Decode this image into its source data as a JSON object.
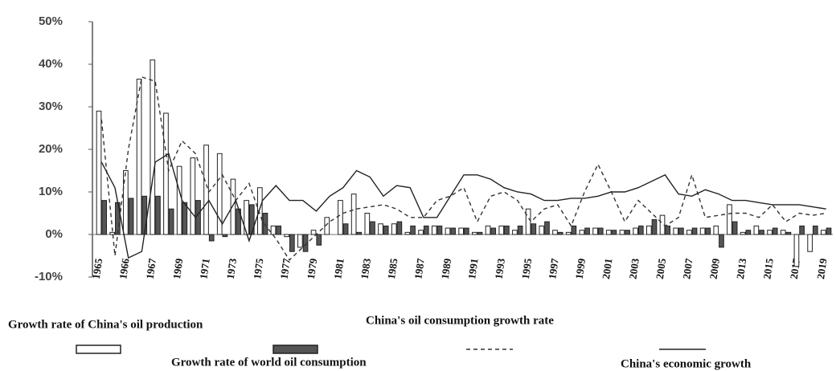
{
  "chart_data": {
    "type": "bar-line",
    "categories": [
      "1965",
      null,
      "1966",
      null,
      "1967",
      null,
      "1969",
      null,
      "1971",
      null,
      "1973",
      null,
      "1975",
      null,
      "1977",
      null,
      "1979",
      null,
      "1981",
      null,
      "1983",
      null,
      "1985",
      null,
      "1987",
      null,
      "1989",
      null,
      "1991",
      null,
      "1993",
      null,
      "1995",
      null,
      "1997",
      null,
      "1999",
      null,
      "2001",
      null,
      "2003",
      null,
      "2005",
      null,
      "2007",
      null,
      "2009",
      null,
      "2013",
      null,
      "2015",
      null,
      "2017",
      null,
      "2019"
    ],
    "series": [
      {
        "name": "Growth rate of China's oil production",
        "kind": "bar",
        "color": "#ffffff",
        "values": [
          29,
          0.5,
          15,
          36.5,
          41,
          28.5,
          16,
          18,
          21,
          19,
          13,
          8,
          11,
          2,
          -0.5,
          -3,
          1,
          4,
          8,
          9.5,
          5,
          2.5,
          2.5,
          0.5,
          1,
          2,
          1.5,
          1.5,
          0.5,
          2,
          2,
          1,
          6,
          2,
          1,
          0.5,
          1,
          1.5,
          1,
          1,
          1.5,
          2,
          4.5,
          1.5,
          1,
          1.5,
          2,
          7,
          0.5,
          2,
          1,
          1,
          -7.5,
          -4,
          1
        ]
      },
      {
        "name": "Growth rate of world oil consumption",
        "kind": "bar",
        "color": "#555555",
        "values": [
          8,
          7.5,
          8.5,
          9,
          9,
          6,
          7.5,
          8,
          -1.5,
          -0.5,
          6,
          7,
          5,
          2,
          -4,
          -4,
          -2.5,
          0,
          2.5,
          0.5,
          3,
          2,
          3,
          2,
          2,
          2,
          1.5,
          1.5,
          0.5,
          1.5,
          2,
          2,
          2.5,
          3,
          0.5,
          2,
          1.5,
          1.5,
          1,
          1,
          2,
          3.5,
          2,
          1.5,
          1.5,
          1.5,
          -3,
          3,
          1,
          1,
          1.5,
          0.5,
          2,
          2,
          1.5
        ]
      },
      {
        "name": "China's oil consumption growth rate",
        "kind": "dashed-line",
        "color": "#333333",
        "values": [
          27,
          -5,
          20,
          37,
          36,
          15,
          22,
          19,
          10,
          14,
          8,
          12,
          3,
          -1,
          -6,
          -3,
          0,
          3,
          5,
          6,
          6.5,
          7,
          6,
          4,
          4,
          8,
          9,
          11,
          3,
          9,
          10,
          8,
          3,
          6,
          7,
          2,
          10,
          16.5,
          10,
          3,
          8,
          5,
          2,
          4,
          14,
          4,
          4.5,
          5,
          5,
          4,
          7,
          3,
          5,
          4.5,
          5
        ]
      },
      {
        "name": "China's economic growth",
        "kind": "line",
        "color": "#222222",
        "values": [
          17,
          11,
          -5.5,
          -4,
          17,
          19,
          8,
          4,
          8,
          2.5,
          8,
          -1.5,
          8,
          11.5,
          8,
          8,
          5.5,
          9,
          11,
          15,
          13.5,
          9,
          11.5,
          11,
          4,
          4,
          9,
          14,
          14,
          13,
          11,
          10,
          9.5,
          8,
          8,
          8.5,
          8.5,
          9,
          10,
          10,
          11,
          12.5,
          14,
          9.5,
          9,
          10.5,
          9.5,
          8,
          8,
          7.5,
          7,
          7,
          7,
          6.5,
          6
        ]
      }
    ],
    "ylim": [
      -10,
      50
    ],
    "yticks": [
      {
        "value": -10,
        "label": "-10%"
      },
      {
        "value": 0,
        "label": "0%"
      },
      {
        "value": 10,
        "label": "10%"
      },
      {
        "value": 20,
        "label": "20%"
      },
      {
        "value": 30,
        "label": "30%"
      },
      {
        "value": 40,
        "label": "40%"
      },
      {
        "value": 50,
        "label": "50%"
      }
    ]
  }
}
